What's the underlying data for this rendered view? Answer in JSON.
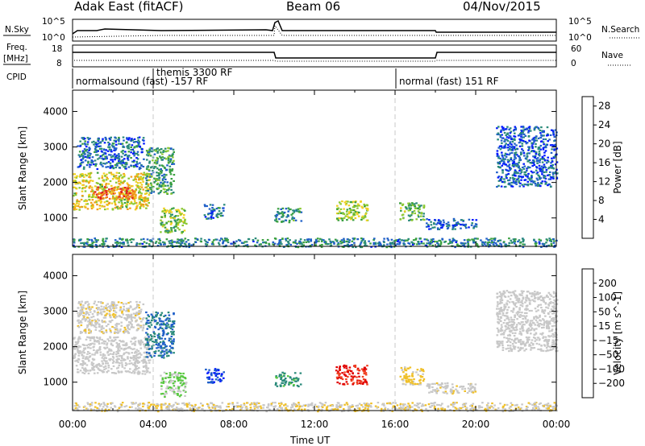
{
  "header": {
    "radar": "Adak East (fitACF)",
    "beam": "Beam 06",
    "date": "04/Nov/2015"
  },
  "panels": {
    "nsky_label": "N.Sky",
    "nsky_ticks": [
      "10^5",
      "10^0"
    ],
    "nsearch_label": "N.Search",
    "nsearch_ticks": [
      "10^5",
      "10^0"
    ],
    "freq_label": "Freq.",
    "freq_unit": "[MHz]",
    "freq_ticks": [
      "18",
      "8"
    ],
    "nave_label": "Nave",
    "nave_ticks": [
      "60",
      "0"
    ],
    "cpid_label": "CPID",
    "cpid_segments": [
      {
        "label": "normalsound (fast) -157 RF",
        "start_hour": 0
      },
      {
        "label": "themis 3300 RF",
        "start_hour": 4
      },
      {
        "label": "normal (fast) 151 RF",
        "start_hour": 16
      }
    ]
  },
  "chart_data": [
    {
      "type": "heatmap",
      "title": "",
      "xlabel": "Time UT",
      "ylabel": "Slant Range [km]",
      "xlim": [
        0,
        24
      ],
      "ylim": [
        200,
        4600
      ],
      "x_ticks": [
        "00:00",
        "04:00",
        "08:00",
        "12:00",
        "16:00",
        "20:00",
        "00:00"
      ],
      "y_ticks": [
        1000,
        2000,
        3000,
        4000
      ],
      "colorbar": {
        "label": "Power [dB]",
        "ticks": [
          4,
          8,
          12,
          16,
          20,
          24,
          28
        ],
        "range": [
          0,
          30
        ],
        "colors": [
          "#0018ff",
          "#1f5fc8",
          "#2a8a7a",
          "#3aa040",
          "#8cc832",
          "#f0d020",
          "#f0a018",
          "#f07020",
          "#e02020"
        ]
      },
      "regions": [
        {
          "t0": 0.0,
          "t1": 3.8,
          "r0": 1250,
          "r1": 2300,
          "value": 18
        },
        {
          "t0": 1.0,
          "t1": 3.0,
          "r0": 1550,
          "r1": 1900,
          "value": 25
        },
        {
          "t0": 0.2,
          "t1": 3.5,
          "r0": 2400,
          "r1": 3300,
          "value": 6
        },
        {
          "t0": 3.6,
          "t1": 5.0,
          "r0": 1700,
          "r1": 3000,
          "value": 10
        },
        {
          "t0": 4.3,
          "t1": 5.6,
          "r0": 600,
          "r1": 1300,
          "value": 14
        },
        {
          "t0": 6.5,
          "t1": 7.5,
          "r0": 1000,
          "r1": 1400,
          "value": 6
        },
        {
          "t0": 10.0,
          "t1": 11.3,
          "r0": 900,
          "r1": 1300,
          "value": 9
        },
        {
          "t0": 13.0,
          "t1": 14.6,
          "r0": 950,
          "r1": 1500,
          "value": 15
        },
        {
          "t0": 16.2,
          "t1": 17.4,
          "r0": 950,
          "r1": 1450,
          "value": 12
        },
        {
          "t0": 17.5,
          "t1": 20.0,
          "r0": 700,
          "r1": 1000,
          "value": 5
        },
        {
          "t0": 21.0,
          "t1": 24.0,
          "r0": 1900,
          "r1": 3600,
          "value": 5
        },
        {
          "t0": 0.0,
          "t1": 24.0,
          "r0": 200,
          "r1": 450,
          "value": 8
        }
      ]
    },
    {
      "type": "heatmap",
      "title": "",
      "xlabel": "Time UT",
      "ylabel": "Slant Range [km]",
      "xlim": [
        0,
        24
      ],
      "ylim": [
        200,
        4600
      ],
      "x_ticks": [
        "00:00",
        "04:00",
        "08:00",
        "12:00",
        "16:00",
        "20:00",
        "00:00"
      ],
      "y_ticks": [
        1000,
        2000,
        3000,
        4000
      ],
      "colorbar": {
        "label": "Velocity [m s^-1]",
        "ticks": [
          200,
          100,
          50,
          15,
          -15,
          -50,
          -100,
          -200
        ],
        "range": [
          -250,
          250
        ],
        "colors": [
          "#0018ff",
          "#1f5fc8",
          "#2a8a7a",
          "#58c840",
          "#c8c8c8",
          "#c8c8c8",
          "#f0c028",
          "#f08820",
          "#f04020",
          "#e00000"
        ]
      },
      "regions": [
        {
          "t0": 0.0,
          "t1": 3.8,
          "r0": 1250,
          "r1": 2300,
          "value": 0
        },
        {
          "t0": 0.2,
          "t1": 3.5,
          "r0": 2400,
          "r1": 3300,
          "value": -30
        },
        {
          "t0": 3.6,
          "t1": 5.0,
          "r0": 1700,
          "r1": 3000,
          "value": 150
        },
        {
          "t0": 4.3,
          "t1": 5.6,
          "r0": 600,
          "r1": 1300,
          "value": 60
        },
        {
          "t0": 6.5,
          "t1": 7.5,
          "r0": 1000,
          "r1": 1400,
          "value": 200
        },
        {
          "t0": 10.0,
          "t1": 11.3,
          "r0": 900,
          "r1": 1300,
          "value": 120
        },
        {
          "t0": 13.0,
          "t1": 14.6,
          "r0": 950,
          "r1": 1500,
          "value": -200
        },
        {
          "t0": 16.2,
          "t1": 17.4,
          "r0": 950,
          "r1": 1450,
          "value": -60
        },
        {
          "t0": 17.5,
          "t1": 20.0,
          "r0": 700,
          "r1": 1000,
          "value": -30
        },
        {
          "t0": 21.0,
          "t1": 24.0,
          "r0": 1900,
          "r1": 3600,
          "value": 0
        },
        {
          "t0": 0.0,
          "t1": 24.0,
          "r0": 200,
          "r1": 450,
          "value": -40
        }
      ]
    }
  ]
}
